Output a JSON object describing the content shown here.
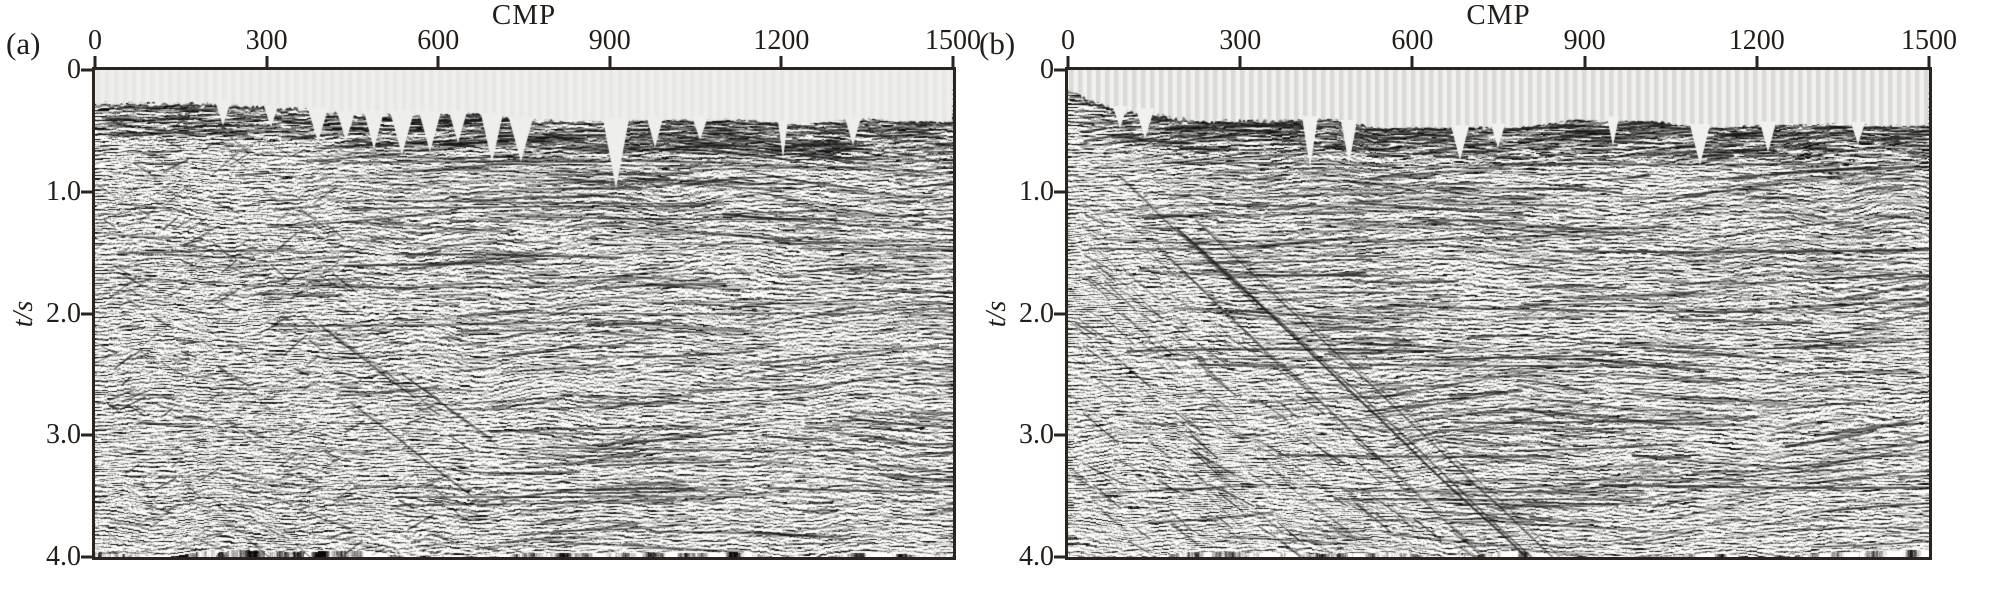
{
  "figure": {
    "axis_color": "#2a231e",
    "mute_band_color": "#efefed",
    "panels": [
      {
        "label": "(a)",
        "x_axis": {
          "title": "CMP",
          "ticks": [
            "0",
            "300",
            "600",
            "900",
            "1200",
            "1500"
          ]
        },
        "y_axis": {
          "title": "t/s",
          "ticks": [
            "0",
            "1.0",
            "2.0",
            "3.0",
            "4.0"
          ]
        }
      },
      {
        "label": "(b)",
        "x_axis": {
          "title": "CMP",
          "ticks": [
            "0",
            "300",
            "600",
            "900",
            "1200",
            "1500"
          ]
        },
        "y_axis": {
          "title": "t/s",
          "ticks": [
            "0",
            "1.0",
            "2.0",
            "3.0",
            "4.0"
          ]
        }
      }
    ]
  }
}
